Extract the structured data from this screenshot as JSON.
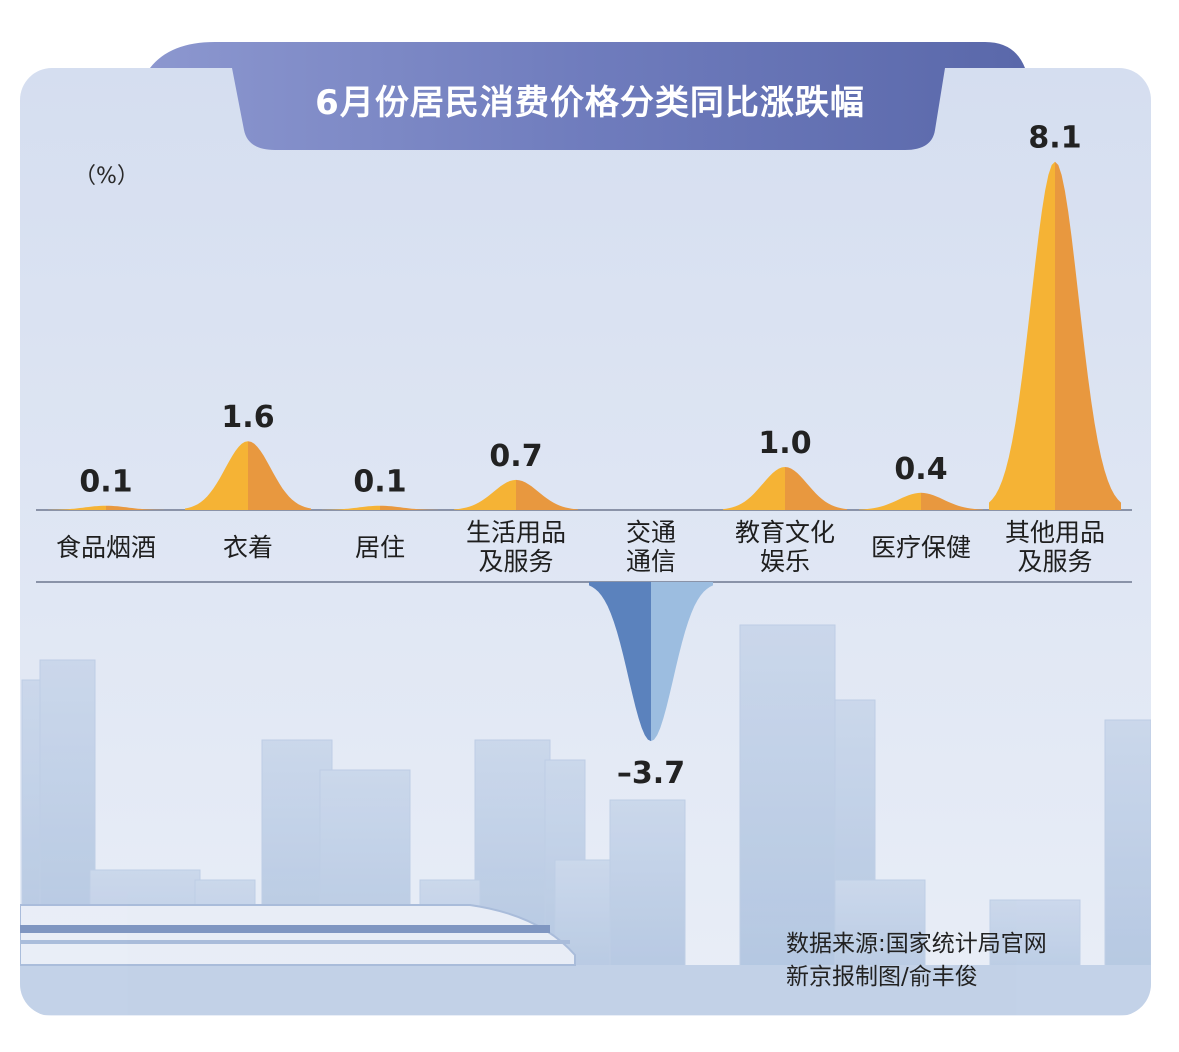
{
  "chart_data": {
    "type": "area",
    "title": "6月份居民消费价格分类同比涨跌幅",
    "unit_label": "（%）",
    "categories": [
      [
        "食品烟酒"
      ],
      [
        "衣着"
      ],
      [
        "居住"
      ],
      [
        "生活用品",
        "及服务"
      ],
      [
        "交通",
        "通信"
      ],
      [
        "教育文化",
        "娱乐"
      ],
      [
        "医疗保健"
      ],
      [
        "其他用品",
        "及服务"
      ]
    ],
    "values": [
      0.1,
      1.6,
      0.1,
      0.7,
      -3.7,
      1.0,
      0.4,
      8.1
    ],
    "value_labels": [
      "0.1",
      "1.6",
      "0.1",
      "0.7",
      "–3.7",
      "1.0",
      "0.4",
      "8.1"
    ],
    "colors": {
      "positive_left": "#f5b335",
      "positive_right": "#e8983f",
      "negative_left": "#5b82bd",
      "negative_right": "#9cbde0",
      "title_band": "#6c78b8",
      "sky_top": "#d6dff0",
      "sky_bottom": "#e6ecf6"
    }
  },
  "source": {
    "line1": "数据来源:国家统计局官网",
    "line2": "新京报制图/俞丰俊"
  }
}
